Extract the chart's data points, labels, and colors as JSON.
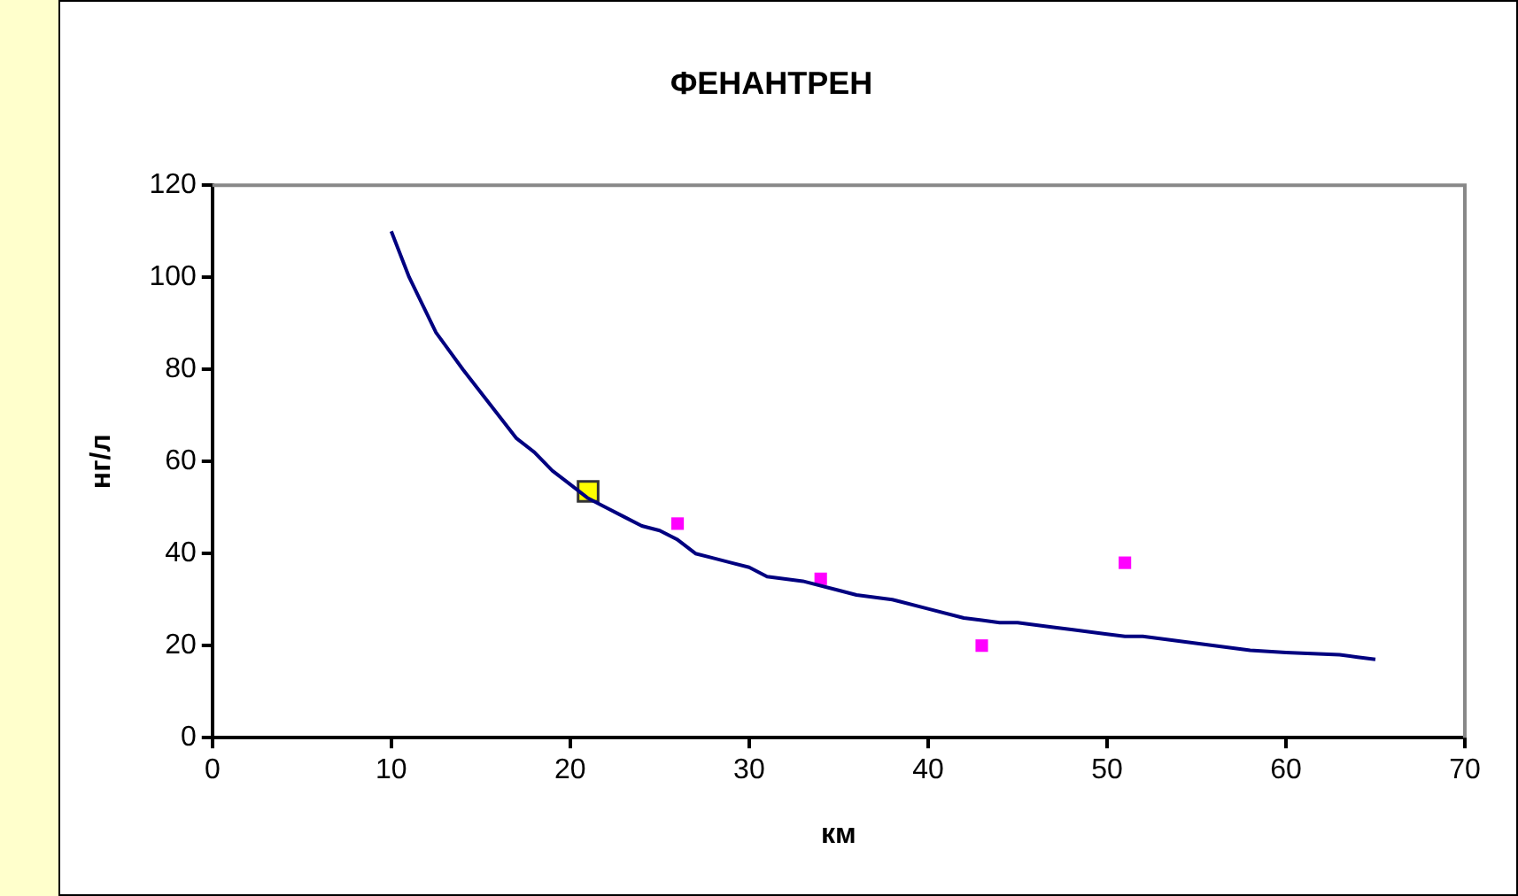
{
  "chart_data": {
    "type": "scatter",
    "title": "ФЕНАНТРЕН",
    "xlabel": "км",
    "ylabel": "нг/л",
    "xlim": [
      0,
      70
    ],
    "xticks": [
      0,
      10,
      20,
      30,
      40,
      50,
      60,
      70
    ],
    "ylim": [
      0,
      120
    ],
    "yticks": [
      0,
      20,
      40,
      60,
      80,
      100,
      120
    ],
    "grid": false,
    "legend": false,
    "series": [
      {
        "type": "line",
        "color": "#000080",
        "marker": "none",
        "x": [
          10,
          11,
          12.5,
          14,
          15,
          16,
          17,
          18,
          19,
          20,
          21,
          22,
          23,
          24,
          25,
          26,
          27,
          28,
          29,
          30,
          31,
          33,
          35,
          36,
          38,
          40,
          42,
          43,
          44,
          45,
          47,
          48,
          50,
          51,
          52,
          54,
          56,
          58,
          60,
          63,
          64,
          65
        ],
        "values": [
          110,
          100,
          88,
          80,
          75,
          70,
          65,
          62,
          58,
          55,
          52,
          50,
          48,
          46,
          45,
          43,
          40,
          39,
          38,
          37,
          35,
          34,
          32,
          31,
          30,
          28,
          26,
          25.5,
          25,
          25,
          24,
          23.5,
          22.5,
          22,
          22,
          21,
          20,
          19,
          18.5,
          18,
          17.5,
          17
        ]
      },
      {
        "type": "scatter",
        "color": "#ff00ff",
        "marker": "square",
        "x": [
          26,
          34,
          43,
          51
        ],
        "values": [
          46.5,
          34.5,
          20,
          38
        ]
      },
      {
        "type": "scatter",
        "color": "#ffff00",
        "marker": "square",
        "x": [
          21
        ],
        "values": [
          53.5
        ]
      }
    ]
  }
}
